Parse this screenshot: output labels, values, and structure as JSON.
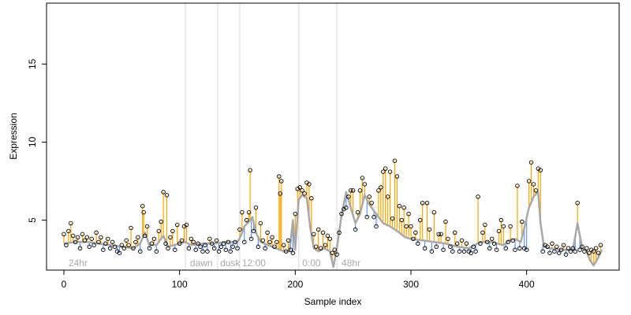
{
  "chart_data": {
    "type": "scatter",
    "title": "",
    "xlabel": "Sample index",
    "ylabel": "Expression",
    "xlim": [
      -15,
      480
    ],
    "ylim": [
      1.8,
      18.9
    ],
    "x_ticks": [
      0,
      100,
      200,
      300,
      400
    ],
    "y_ticks": [
      5,
      10,
      15
    ],
    "grid": false,
    "legend": "none",
    "colors": {
      "points": "#000000",
      "fitted_line": "#a8a8a8",
      "above": "#ffa500",
      "below": "#6495ed",
      "vlines": "#d9d9d9"
    },
    "vlines": [
      105,
      133,
      152,
      203,
      236
    ],
    "annotations": [
      {
        "x": 2,
        "label": "24hr"
      },
      {
        "x": 107,
        "label": "dawn"
      },
      {
        "x": 133,
        "label": "dusk"
      },
      {
        "x": 152,
        "label": "12:00"
      },
      {
        "x": 204,
        "label": "0:00"
      },
      {
        "x": 238,
        "label": "48hr"
      }
    ],
    "fitted_line": [
      [
        0,
        3.5
      ],
      [
        10,
        3.6
      ],
      [
        20,
        3.6
      ],
      [
        30,
        3.5
      ],
      [
        40,
        3.4
      ],
      [
        50,
        3.3
      ],
      [
        60,
        3.2
      ],
      [
        66,
        3.5
      ],
      [
        70,
        4.2
      ],
      [
        74,
        3.4
      ],
      [
        80,
        3.4
      ],
      [
        86,
        4.0
      ],
      [
        90,
        3.3
      ],
      [
        100,
        3.5
      ],
      [
        105,
        3.6
      ],
      [
        110,
        3.4
      ],
      [
        120,
        3.5
      ],
      [
        130,
        3.5
      ],
      [
        140,
        3.6
      ],
      [
        150,
        3.6
      ],
      [
        153,
        4.0
      ],
      [
        156,
        4.6
      ],
      [
        160,
        4.9
      ],
      [
        163,
        5.2
      ],
      [
        166,
        4.2
      ],
      [
        170,
        3.6
      ],
      [
        180,
        3.3
      ],
      [
        190,
        3.0
      ],
      [
        195,
        3.0
      ],
      [
        198,
        5.0
      ],
      [
        200,
        3.1
      ],
      [
        203,
        6.3
      ],
      [
        206,
        6.6
      ],
      [
        210,
        6.4
      ],
      [
        213,
        4.5
      ],
      [
        216,
        3.2
      ],
      [
        220,
        3.0
      ],
      [
        225,
        3.2
      ],
      [
        230,
        3.0
      ],
      [
        233,
        2.0
      ],
      [
        236,
        3.2
      ],
      [
        240,
        5.3
      ],
      [
        244,
        6.8
      ],
      [
        248,
        5.8
      ],
      [
        252,
        4.8
      ],
      [
        256,
        5.4
      ],
      [
        260,
        6.6
      ],
      [
        264,
        6.0
      ],
      [
        270,
        5.4
      ],
      [
        276,
        4.8
      ],
      [
        282,
        4.6
      ],
      [
        290,
        4.2
      ],
      [
        295,
        3.9
      ],
      [
        300,
        3.8
      ],
      [
        310,
        3.7
      ],
      [
        320,
        3.6
      ],
      [
        330,
        3.5
      ],
      [
        340,
        3.3
      ],
      [
        350,
        3.2
      ],
      [
        360,
        3.6
      ],
      [
        370,
        3.6
      ],
      [
        380,
        3.4
      ],
      [
        385,
        3.7
      ],
      [
        390,
        3.8
      ],
      [
        395,
        3.6
      ],
      [
        398,
        4.5
      ],
      [
        402,
        5.8
      ],
      [
        406,
        6.5
      ],
      [
        410,
        6.8
      ],
      [
        412,
        4.8
      ],
      [
        415,
        3.3
      ],
      [
        420,
        3.2
      ],
      [
        430,
        3.1
      ],
      [
        440,
        3.1
      ],
      [
        444,
        4.8
      ],
      [
        448,
        3.2
      ],
      [
        452,
        3.0
      ],
      [
        455,
        2.4
      ],
      [
        458,
        2.1
      ],
      [
        462,
        2.6
      ],
      [
        465,
        3.1
      ]
    ],
    "points": [
      [
        0,
        4.1
      ],
      [
        2,
        3.4
      ],
      [
        4,
        4.3
      ],
      [
        6,
        4.8
      ],
      [
        8,
        4.0
      ],
      [
        10,
        3.6
      ],
      [
        12,
        3.9
      ],
      [
        14,
        3.2
      ],
      [
        16,
        4.1
      ],
      [
        18,
        3.7
      ],
      [
        20,
        3.9
      ],
      [
        22,
        3.3
      ],
      [
        24,
        3.8
      ],
      [
        26,
        3.4
      ],
      [
        28,
        4.2
      ],
      [
        30,
        3.6
      ],
      [
        32,
        3.9
      ],
      [
        34,
        3.1
      ],
      [
        36,
        3.5
      ],
      [
        38,
        3.8
      ],
      [
        40,
        3.2
      ],
      [
        42,
        3.6
      ],
      [
        44,
        3.3
      ],
      [
        46,
        3.0
      ],
      [
        48,
        2.9
      ],
      [
        50,
        3.4
      ],
      [
        52,
        3.2
      ],
      [
        54,
        3.7
      ],
      [
        56,
        3.4
      ],
      [
        58,
        4.5
      ],
      [
        60,
        3.2
      ],
      [
        62,
        3.6
      ],
      [
        64,
        3.9
      ],
      [
        66,
        3.0
      ],
      [
        68,
        5.9
      ],
      [
        69,
        5.5
      ],
      [
        70,
        4.0
      ],
      [
        72,
        4.6
      ],
      [
        74,
        3.2
      ],
      [
        76,
        3.5
      ],
      [
        78,
        3.8
      ],
      [
        80,
        3.0
      ],
      [
        82,
        4.3
      ],
      [
        84,
        4.9
      ],
      [
        86,
        6.8
      ],
      [
        88,
        3.5
      ],
      [
        89,
        6.6
      ],
      [
        90,
        3.2
      ],
      [
        92,
        3.9
      ],
      [
        94,
        4.3
      ],
      [
        96,
        3.1
      ],
      [
        98,
        4.7
      ],
      [
        100,
        3.5
      ],
      [
        102,
        3.7
      ],
      [
        104,
        4.6
      ],
      [
        106,
        4.7
      ],
      [
        108,
        3.2
      ],
      [
        110,
        3.8
      ],
      [
        112,
        3.6
      ],
      [
        114,
        3.1
      ],
      [
        116,
        3.5
      ],
      [
        118,
        3.3
      ],
      [
        120,
        3.0
      ],
      [
        122,
        3.4
      ],
      [
        124,
        3.0
      ],
      [
        126,
        3.8
      ],
      [
        128,
        3.5
      ],
      [
        130,
        3.2
      ],
      [
        132,
        3.7
      ],
      [
        134,
        3.0
      ],
      [
        136,
        3.3
      ],
      [
        138,
        3.5
      ],
      [
        140,
        3.1
      ],
      [
        142,
        3.6
      ],
      [
        144,
        3.0
      ],
      [
        146,
        3.3
      ],
      [
        148,
        3.6
      ],
      [
        150,
        3.2
      ],
      [
        152,
        4.4
      ],
      [
        154,
        5.5
      ],
      [
        156,
        3.6
      ],
      [
        158,
        5.0
      ],
      [
        160,
        5.5
      ],
      [
        161,
        8.2
      ],
      [
        162,
        3.8
      ],
      [
        164,
        4.3
      ],
      [
        166,
        5.8
      ],
      [
        168,
        3.3
      ],
      [
        170,
        4.8
      ],
      [
        172,
        3.7
      ],
      [
        174,
        3.2
      ],
      [
        176,
        4.2
      ],
      [
        178,
        3.6
      ],
      [
        180,
        3.9
      ],
      [
        182,
        3.3
      ],
      [
        184,
        3.6
      ],
      [
        186,
        7.8
      ],
      [
        187,
        6.7
      ],
      [
        188,
        7.5
      ],
      [
        190,
        3.4
      ],
      [
        192,
        3.0
      ],
      [
        194,
        3.7
      ],
      [
        196,
        3.1
      ],
      [
        198,
        2.9
      ],
      [
        200,
        5.4
      ],
      [
        202,
        7.0
      ],
      [
        204,
        7.1
      ],
      [
        206,
        6.9
      ],
      [
        208,
        6.7
      ],
      [
        210,
        7.4
      ],
      [
        212,
        7.3
      ],
      [
        214,
        6.4
      ],
      [
        216,
        4.1
      ],
      [
        218,
        3.3
      ],
      [
        220,
        4.4
      ],
      [
        222,
        3.2
      ],
      [
        224,
        4.2
      ],
      [
        226,
        3.4
      ],
      [
        228,
        4.0
      ],
      [
        230,
        3.8
      ],
      [
        232,
        2.9
      ],
      [
        234,
        3.1
      ],
      [
        236,
        2.8
      ],
      [
        238,
        4.2
      ],
      [
        240,
        5.4
      ],
      [
        242,
        5.7
      ],
      [
        244,
        5.8
      ],
      [
        246,
        6.5
      ],
      [
        248,
        6.9
      ],
      [
        250,
        6.9
      ],
      [
        252,
        4.4
      ],
      [
        254,
        5.5
      ],
      [
        256,
        6.9
      ],
      [
        258,
        7.7
      ],
      [
        260,
        7.3
      ],
      [
        262,
        5.2
      ],
      [
        264,
        6.5
      ],
      [
        266,
        6.1
      ],
      [
        268,
        5.2
      ],
      [
        270,
        4.6
      ],
      [
        272,
        6.9
      ],
      [
        274,
        7.1
      ],
      [
        276,
        8.1
      ],
      [
        278,
        8.3
      ],
      [
        280,
        6.5
      ],
      [
        282,
        8.1
      ],
      [
        284,
        5.1
      ],
      [
        286,
        8.8
      ],
      [
        288,
        7.8
      ],
      [
        290,
        5.9
      ],
      [
        292,
        5.0
      ],
      [
        294,
        5.8
      ],
      [
        296,
        4.6
      ],
      [
        298,
        5.4
      ],
      [
        300,
        4.6
      ],
      [
        302,
        3.8
      ],
      [
        304,
        4.2
      ],
      [
        306,
        3.5
      ],
      [
        308,
        5.0
      ],
      [
        310,
        6.1
      ],
      [
        312,
        3.2
      ],
      [
        314,
        6.1
      ],
      [
        316,
        4.4
      ],
      [
        318,
        3.0
      ],
      [
        320,
        5.5
      ],
      [
        322,
        3.3
      ],
      [
        324,
        4.1
      ],
      [
        326,
        4.1
      ],
      [
        328,
        3.1
      ],
      [
        330,
        4.9
      ],
      [
        332,
        3.8
      ],
      [
        334,
        3.3
      ],
      [
        336,
        3.0
      ],
      [
        338,
        4.2
      ],
      [
        340,
        3.5
      ],
      [
        342,
        3.0
      ],
      [
        344,
        3.7
      ],
      [
        346,
        3.0
      ],
      [
        348,
        3.5
      ],
      [
        350,
        3.0
      ],
      [
        352,
        2.9
      ],
      [
        354,
        3.3
      ],
      [
        356,
        3.0
      ],
      [
        358,
        6.5
      ],
      [
        360,
        3.5
      ],
      [
        362,
        4.2
      ],
      [
        364,
        4.7
      ],
      [
        366,
        3.6
      ],
      [
        368,
        3.2
      ],
      [
        370,
        3.8
      ],
      [
        372,
        3.5
      ],
      [
        374,
        3.1
      ],
      [
        376,
        4.3
      ],
      [
        378,
        5.0
      ],
      [
        380,
        4.6
      ],
      [
        382,
        3.2
      ],
      [
        384,
        3.6
      ],
      [
        386,
        4.6
      ],
      [
        388,
        3.7
      ],
      [
        390,
        3.1
      ],
      [
        392,
        7.2
      ],
      [
        394,
        3.2
      ],
      [
        396,
        4.9
      ],
      [
        398,
        3.2
      ],
      [
        400,
        3.1
      ],
      [
        402,
        7.5
      ],
      [
        404,
        8.7
      ],
      [
        406,
        7.3
      ],
      [
        408,
        6.9
      ],
      [
        410,
        8.3
      ],
      [
        412,
        8.2
      ],
      [
        414,
        3.0
      ],
      [
        416,
        3.4
      ],
      [
        418,
        3.3
      ],
      [
        420,
        2.9
      ],
      [
        422,
        3.5
      ],
      [
        424,
        3.0
      ],
      [
        426,
        3.3
      ],
      [
        428,
        2.9
      ],
      [
        430,
        3.1
      ],
      [
        432,
        3.4
      ],
      [
        434,
        2.8
      ],
      [
        436,
        3.2
      ],
      [
        438,
        3.0
      ],
      [
        440,
        3.2
      ],
      [
        442,
        3.0
      ],
      [
        444,
        6.1
      ],
      [
        446,
        3.1
      ],
      [
        448,
        3.3
      ],
      [
        450,
        3.0
      ],
      [
        452,
        3.2
      ],
      [
        454,
        2.9
      ],
      [
        456,
        3.1
      ],
      [
        458,
        3.0
      ],
      [
        460,
        3.2
      ],
      [
        462,
        2.9
      ],
      [
        464,
        3.4
      ]
    ]
  }
}
